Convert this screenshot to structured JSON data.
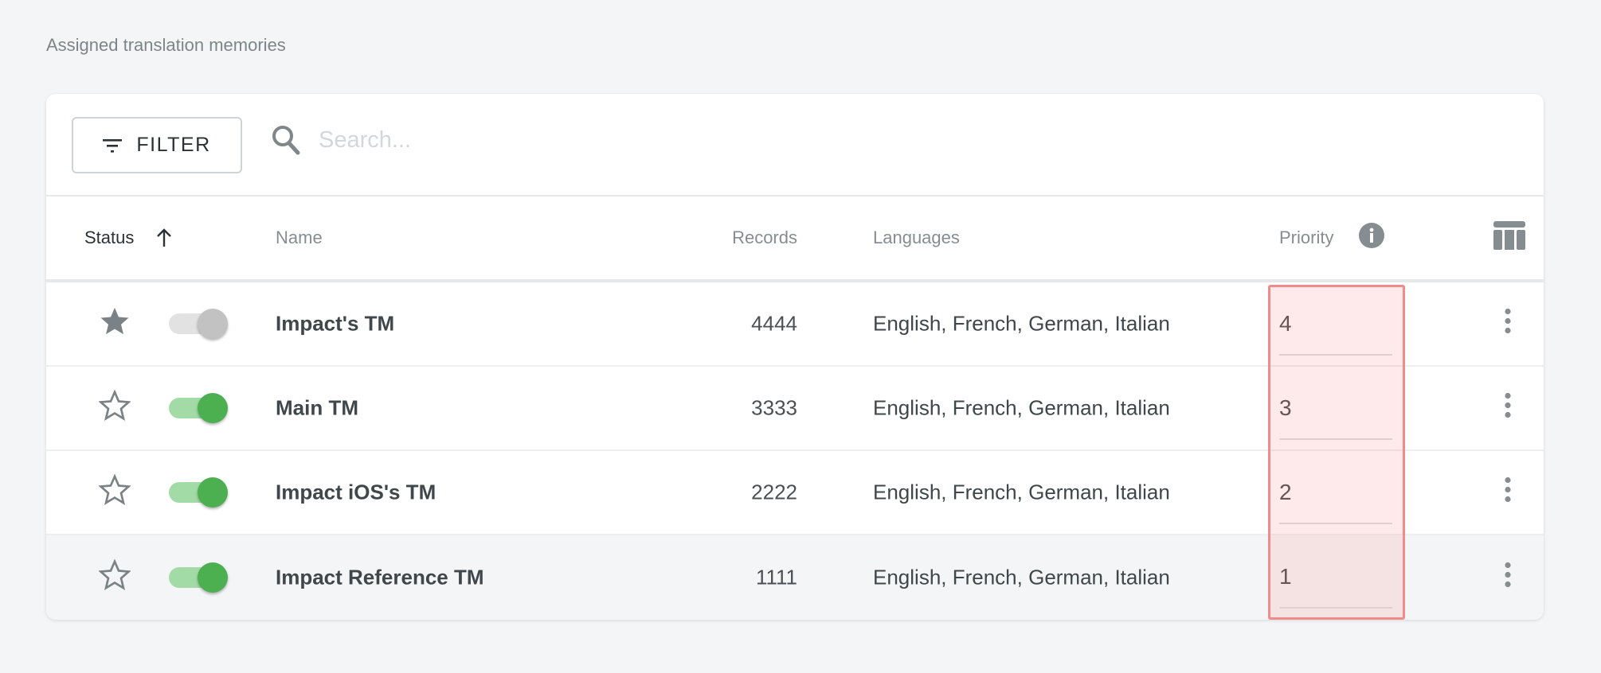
{
  "section_title": "Assigned translation memories",
  "toolbar": {
    "filter_label": "FILTER",
    "search_placeholder": "Search...",
    "search_value": ""
  },
  "columns": {
    "status": "Status",
    "name": "Name",
    "records": "Records",
    "languages": "Languages",
    "priority": "Priority"
  },
  "sort": {
    "column": "Status",
    "direction": "ascending"
  },
  "colors": {
    "toggle_on": "#4caf50",
    "highlight": "#f08b8b"
  },
  "rows": [
    {
      "favorite": true,
      "enabled": false,
      "name": "Impact's TM",
      "records": "4444",
      "languages": "English, French, German, Italian",
      "priority": "4"
    },
    {
      "favorite": false,
      "enabled": true,
      "name": "Main TM",
      "records": "3333",
      "languages": "English, French, German, Italian",
      "priority": "3"
    },
    {
      "favorite": false,
      "enabled": true,
      "name": "Impact iOS's TM",
      "records": "2222",
      "languages": "English, French, German, Italian",
      "priority": "2"
    },
    {
      "favorite": false,
      "enabled": true,
      "name": "Impact Reference TM",
      "records": "1111",
      "languages": "English, French, German, Italian",
      "priority": "1"
    }
  ]
}
